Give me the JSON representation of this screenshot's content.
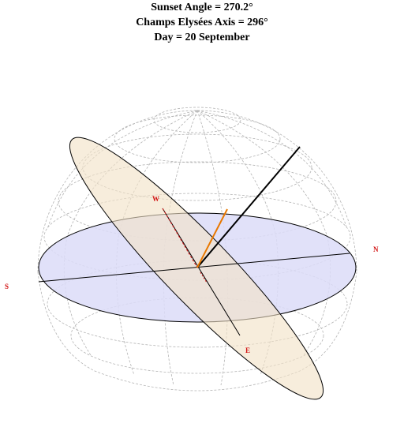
{
  "title": {
    "line1": "Sunset Angle = 270.2°",
    "line2": "Champs Elysées Axis = 296°",
    "line3": "Day = 20 September"
  },
  "directions": {
    "west": "W",
    "north": "N",
    "south": "S",
    "east": "E"
  },
  "colors": {
    "label": "#d21414",
    "horizon_fill": "#dcdcf8",
    "sun_path_fill": "#f2e2c6",
    "sun_ray": "#e87800",
    "axis_line": "#000000",
    "grid": "#b4b4b4"
  }
}
